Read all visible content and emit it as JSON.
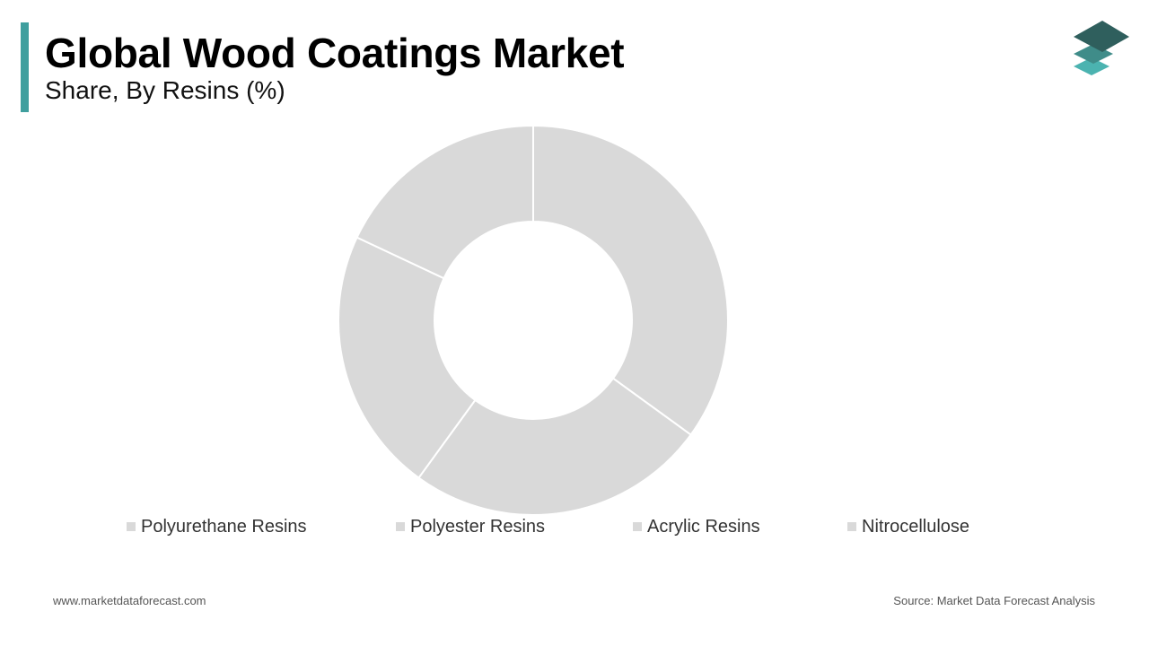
{
  "header": {
    "title": "Global Wood Coatings Market",
    "subtitle": "Share, By Resins (%)"
  },
  "logo": {
    "icon": "stacked-layers-logo-icon",
    "colors": [
      "#2f5f5d",
      "#3f8c89",
      "#4bb3b0"
    ]
  },
  "colors": {
    "accent": "#3f9f9e",
    "slice": "#d9d9d9",
    "slice_border": "#ffffff"
  },
  "chart_data": {
    "type": "pie",
    "donut": true,
    "categories": [
      "Polyurethane Resins",
      "Polyester Resins",
      "Acrylic Resins",
      "Nitrocellulose"
    ],
    "values": [
      35,
      25,
      22,
      18
    ],
    "legend_position": "bottom"
  },
  "footer": {
    "website": "www.marketdataforecast.com",
    "source": "Source: Market Data Forecast Analysis"
  }
}
